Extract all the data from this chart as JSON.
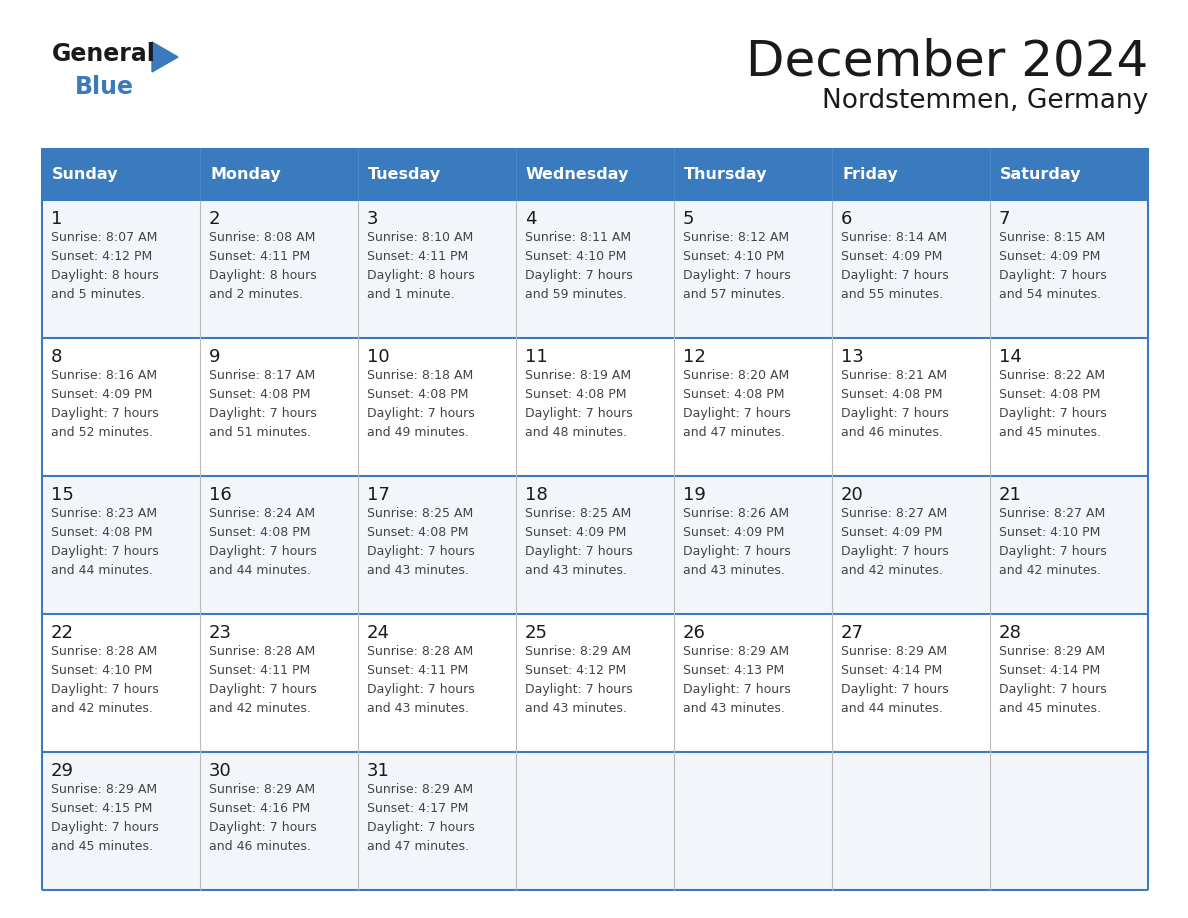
{
  "title": "December 2024",
  "subtitle": "Nordstemmen, Germany",
  "header_bg_color": "#3a7abf",
  "header_text_color": "#ffffff",
  "day_names": [
    "Sunday",
    "Monday",
    "Tuesday",
    "Wednesday",
    "Thursday",
    "Friday",
    "Saturday"
  ],
  "row_bg_even": "#f2f6fa",
  "row_bg_odd": "#ffffff",
  "border_color": "#3a7abf",
  "text_color": "#1a1a1a",
  "cell_text_color": "#444444",
  "logo_general_color": "#1a1a1a",
  "logo_blue_color": "#3a7abf",
  "weeks": [
    [
      {
        "day": "1",
        "sunrise": "8:07 AM",
        "sunset": "4:12 PM",
        "daylight1": "8 hours",
        "daylight2": "and 5 minutes."
      },
      {
        "day": "2",
        "sunrise": "8:08 AM",
        "sunset": "4:11 PM",
        "daylight1": "8 hours",
        "daylight2": "and 2 minutes."
      },
      {
        "day": "3",
        "sunrise": "8:10 AM",
        "sunset": "4:11 PM",
        "daylight1": "8 hours",
        "daylight2": "and 1 minute."
      },
      {
        "day": "4",
        "sunrise": "8:11 AM",
        "sunset": "4:10 PM",
        "daylight1": "7 hours",
        "daylight2": "and 59 minutes."
      },
      {
        "day": "5",
        "sunrise": "8:12 AM",
        "sunset": "4:10 PM",
        "daylight1": "7 hours",
        "daylight2": "and 57 minutes."
      },
      {
        "day": "6",
        "sunrise": "8:14 AM",
        "sunset": "4:09 PM",
        "daylight1": "7 hours",
        "daylight2": "and 55 minutes."
      },
      {
        "day": "7",
        "sunrise": "8:15 AM",
        "sunset": "4:09 PM",
        "daylight1": "7 hours",
        "daylight2": "and 54 minutes."
      }
    ],
    [
      {
        "day": "8",
        "sunrise": "8:16 AM",
        "sunset": "4:09 PM",
        "daylight1": "7 hours",
        "daylight2": "and 52 minutes."
      },
      {
        "day": "9",
        "sunrise": "8:17 AM",
        "sunset": "4:08 PM",
        "daylight1": "7 hours",
        "daylight2": "and 51 minutes."
      },
      {
        "day": "10",
        "sunrise": "8:18 AM",
        "sunset": "4:08 PM",
        "daylight1": "7 hours",
        "daylight2": "and 49 minutes."
      },
      {
        "day": "11",
        "sunrise": "8:19 AM",
        "sunset": "4:08 PM",
        "daylight1": "7 hours",
        "daylight2": "and 48 minutes."
      },
      {
        "day": "12",
        "sunrise": "8:20 AM",
        "sunset": "4:08 PM",
        "daylight1": "7 hours",
        "daylight2": "and 47 minutes."
      },
      {
        "day": "13",
        "sunrise": "8:21 AM",
        "sunset": "4:08 PM",
        "daylight1": "7 hours",
        "daylight2": "and 46 minutes."
      },
      {
        "day": "14",
        "sunrise": "8:22 AM",
        "sunset": "4:08 PM",
        "daylight1": "7 hours",
        "daylight2": "and 45 minutes."
      }
    ],
    [
      {
        "day": "15",
        "sunrise": "8:23 AM",
        "sunset": "4:08 PM",
        "daylight1": "7 hours",
        "daylight2": "and 44 minutes."
      },
      {
        "day": "16",
        "sunrise": "8:24 AM",
        "sunset": "4:08 PM",
        "daylight1": "7 hours",
        "daylight2": "and 44 minutes."
      },
      {
        "day": "17",
        "sunrise": "8:25 AM",
        "sunset": "4:08 PM",
        "daylight1": "7 hours",
        "daylight2": "and 43 minutes."
      },
      {
        "day": "18",
        "sunrise": "8:25 AM",
        "sunset": "4:09 PM",
        "daylight1": "7 hours",
        "daylight2": "and 43 minutes."
      },
      {
        "day": "19",
        "sunrise": "8:26 AM",
        "sunset": "4:09 PM",
        "daylight1": "7 hours",
        "daylight2": "and 43 minutes."
      },
      {
        "day": "20",
        "sunrise": "8:27 AM",
        "sunset": "4:09 PM",
        "daylight1": "7 hours",
        "daylight2": "and 42 minutes."
      },
      {
        "day": "21",
        "sunrise": "8:27 AM",
        "sunset": "4:10 PM",
        "daylight1": "7 hours",
        "daylight2": "and 42 minutes."
      }
    ],
    [
      {
        "day": "22",
        "sunrise": "8:28 AM",
        "sunset": "4:10 PM",
        "daylight1": "7 hours",
        "daylight2": "and 42 minutes."
      },
      {
        "day": "23",
        "sunrise": "8:28 AM",
        "sunset": "4:11 PM",
        "daylight1": "7 hours",
        "daylight2": "and 42 minutes."
      },
      {
        "day": "24",
        "sunrise": "8:28 AM",
        "sunset": "4:11 PM",
        "daylight1": "7 hours",
        "daylight2": "and 43 minutes."
      },
      {
        "day": "25",
        "sunrise": "8:29 AM",
        "sunset": "4:12 PM",
        "daylight1": "7 hours",
        "daylight2": "and 43 minutes."
      },
      {
        "day": "26",
        "sunrise": "8:29 AM",
        "sunset": "4:13 PM",
        "daylight1": "7 hours",
        "daylight2": "and 43 minutes."
      },
      {
        "day": "27",
        "sunrise": "8:29 AM",
        "sunset": "4:14 PM",
        "daylight1": "7 hours",
        "daylight2": "and 44 minutes."
      },
      {
        "day": "28",
        "sunrise": "8:29 AM",
        "sunset": "4:14 PM",
        "daylight1": "7 hours",
        "daylight2": "and 45 minutes."
      }
    ],
    [
      {
        "day": "29",
        "sunrise": "8:29 AM",
        "sunset": "4:15 PM",
        "daylight1": "7 hours",
        "daylight2": "and 45 minutes."
      },
      {
        "day": "30",
        "sunrise": "8:29 AM",
        "sunset": "4:16 PM",
        "daylight1": "7 hours",
        "daylight2": "and 46 minutes."
      },
      {
        "day": "31",
        "sunrise": "8:29 AM",
        "sunset": "4:17 PM",
        "daylight1": "7 hours",
        "daylight2": "and 47 minutes."
      },
      null,
      null,
      null,
      null
    ]
  ],
  "num_weeks": 5,
  "num_cols": 7
}
